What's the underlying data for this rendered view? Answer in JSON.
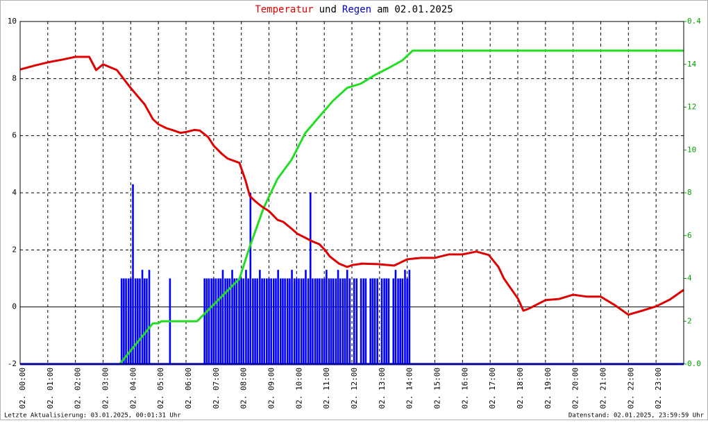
{
  "chart_data": {
    "type": "line",
    "title": [
      {
        "text": "Temperatur",
        "color": "#e00000"
      },
      {
        "text": "und",
        "color": "#000000"
      },
      {
        "text": "Regen",
        "color": "#0000c0"
      },
      {
        "text": "am 02.01.2025",
        "color": "#000000"
      }
    ],
    "footer_left": "Letzte Aktualisierung: 03.01.2025, 00:01:31 Uhr",
    "footer_right": "Datenstand: 02.01.2025, 23:59:59 Uhr",
    "xlim": [
      0,
      24
    ],
    "xticks": [
      {
        "value": 0,
        "label": "02. 00:00"
      },
      {
        "value": 1,
        "label": "02. 01:00"
      },
      {
        "value": 2,
        "label": "02. 02:00"
      },
      {
        "value": 3,
        "label": "02. 03:00"
      },
      {
        "value": 4,
        "label": "02. 04:00"
      },
      {
        "value": 5,
        "label": "02. 05:00"
      },
      {
        "value": 6,
        "label": "02. 06:00"
      },
      {
        "value": 7,
        "label": "02. 07:00"
      },
      {
        "value": 8,
        "label": "02. 08:00"
      },
      {
        "value": 9,
        "label": "02. 09:00"
      },
      {
        "value": 10,
        "label": "02. 10:00"
      },
      {
        "value": 11,
        "label": "02. 11:00"
      },
      {
        "value": 12,
        "label": "02. 12:00"
      },
      {
        "value": 13,
        "label": "02. 13:00"
      },
      {
        "value": 14,
        "label": "02. 14:00"
      },
      {
        "value": 15,
        "label": "02. 15:00"
      },
      {
        "value": 16,
        "label": "02. 16:00"
      },
      {
        "value": 17,
        "label": "02. 17:00"
      },
      {
        "value": 18,
        "label": "02. 18:00"
      },
      {
        "value": 19,
        "label": "02. 19:00"
      },
      {
        "value": 20,
        "label": "02. 20:00"
      },
      {
        "value": 21,
        "label": "02. 21:00"
      },
      {
        "value": 22,
        "label": "02. 22:00"
      },
      {
        "value": 23,
        "label": "02. 23:00"
      }
    ],
    "ylim": [
      -2,
      10
    ],
    "yticks": [
      -2,
      0,
      2,
      4,
      6,
      8,
      10
    ],
    "y2lim": [
      0,
      16
    ],
    "y2ticks": [
      2,
      4,
      6,
      8,
      10,
      12,
      14
    ],
    "y3lim": [
      0,
      0.4
    ],
    "y3ticks": [
      {
        "value": 0,
        "label": "0.0"
      },
      0.4
    ],
    "y2_tick_color": "#00a000",
    "grid": true,
    "series": [
      {
        "color": "#0000ff",
        "kind": "bar",
        "axis": "y3",
        "x": [
          3.67,
          3.75,
          3.83,
          3.92,
          4.0,
          4.08,
          4.17,
          4.25,
          4.33,
          4.42,
          4.5,
          4.58,
          4.67,
          5.42,
          6.67,
          6.75,
          6.83,
          6.92,
          7.0,
          7.08,
          7.17,
          7.25,
          7.33,
          7.42,
          7.5,
          7.58,
          7.67,
          7.75,
          7.83,
          7.92,
          8.0,
          8.08,
          8.17,
          8.25,
          8.33,
          8.42,
          8.5,
          8.58,
          8.67,
          8.75,
          8.83,
          8.92,
          9.0,
          9.08,
          9.17,
          9.25,
          9.33,
          9.42,
          9.5,
          9.58,
          9.67,
          9.75,
          9.83,
          9.92,
          10.0,
          10.08,
          10.17,
          10.25,
          10.33,
          10.42,
          10.5,
          10.58,
          10.67,
          10.75,
          10.83,
          10.92,
          11.0,
          11.08,
          11.17,
          11.25,
          11.33,
          11.42,
          11.5,
          11.58,
          11.67,
          11.75,
          11.83,
          11.92,
          12.0,
          12.08,
          12.17,
          12.25,
          12.33,
          12.42,
          12.5,
          12.58,
          12.67,
          12.75,
          12.83,
          12.92,
          13.0,
          13.08,
          13.17,
          13.25,
          13.33,
          13.42,
          13.5,
          13.58,
          13.67,
          13.75,
          13.83,
          13.92,
          14.0,
          14.08
        ],
        "values": [
          0.1,
          0.1,
          0.1,
          0.1,
          0.1,
          0.21,
          0.1,
          0.1,
          0.1,
          0.11,
          0.1,
          0.1,
          0.11,
          0.1,
          0.1,
          0.1,
          0.1,
          0.1,
          0.1,
          0.1,
          0.1,
          0.1,
          0.11,
          0.1,
          0.1,
          0.1,
          0.11,
          0.1,
          0.1,
          0.1,
          0.1,
          0.1,
          0.11,
          0.1,
          0.2,
          0.1,
          0.1,
          0.1,
          0.11,
          0.1,
          0.1,
          0.1,
          0.1,
          0.1,
          0.1,
          0.1,
          0.11,
          0.1,
          0.1,
          0.1,
          0.1,
          0.1,
          0.11,
          0.1,
          0.1,
          0.1,
          0.1,
          0.1,
          0.11,
          0.1,
          0.2,
          0.1,
          0.1,
          0.1,
          0.1,
          0.1,
          0.1,
          0.11,
          0.1,
          0.1,
          0.1,
          0.1,
          0.11,
          0.1,
          0.1,
          0.1,
          0.11,
          0.1,
          0,
          0.1,
          0.1,
          0,
          0.1,
          0.1,
          0.1,
          0,
          0.1,
          0.1,
          0.1,
          0.1,
          0,
          0.1,
          0.1,
          0.1,
          0.1,
          0,
          0.1,
          0.11,
          0.1,
          0.1,
          0.1,
          0.11,
          0.1,
          0.11
        ]
      },
      {
        "color": "#22dd22",
        "kind": "line",
        "axis": "y2",
        "x": [
          0,
          3.6,
          4.8,
          5.0,
          5.1,
          6.4,
          7.93,
          8.31,
          8.81,
          9.31,
          9.82,
          10.32,
          10.82,
          11.32,
          11.83,
          12.33,
          12.83,
          13.33,
          13.83,
          14.2,
          24
        ],
        "values": [
          0,
          0,
          1.9,
          1.9,
          2.0,
          2.0,
          3.98,
          5.5,
          7.3,
          8.65,
          9.55,
          10.8,
          11.56,
          12.3,
          12.9,
          13.1,
          13.5,
          13.83,
          14.19,
          14.64,
          14.64
        ]
      },
      {
        "color": "#e00000",
        "kind": "line",
        "x": [
          0,
          0.5,
          1,
          1.5,
          2,
          2.5,
          2.75,
          3,
          3.5,
          4,
          4.5,
          4.8,
          5,
          5.3,
          5.5,
          5.8,
          6,
          6.3,
          6.5,
          6.8,
          7,
          7.3,
          7.5,
          7.93,
          8.15,
          8.31,
          8.51,
          8.71,
          9.01,
          9.31,
          9.52,
          9.82,
          10.02,
          10.32,
          10.52,
          10.82,
          11.02,
          11.2,
          11.53,
          11.83,
          12.02,
          12.4,
          12.33,
          12.93,
          13.53,
          14.0,
          14.5,
          15.0,
          15.5,
          16.0,
          16.5,
          16.95,
          17.3,
          17.5,
          18.0,
          18.2,
          18.4,
          19.0,
          19.5,
          20.0,
          20.5,
          21.0,
          21.5,
          22.0,
          22.5,
          23.0,
          23.5,
          24
        ],
        "values": [
          8.32,
          8.45,
          8.57,
          8.66,
          8.76,
          8.76,
          8.3,
          8.5,
          8.3,
          7.67,
          7.1,
          6.58,
          6.4,
          6.26,
          6.2,
          6.1,
          6.13,
          6.2,
          6.18,
          5.95,
          5.65,
          5.36,
          5.2,
          5.05,
          4.44,
          3.88,
          3.7,
          3.54,
          3.35,
          3.05,
          2.98,
          2.74,
          2.57,
          2.42,
          2.32,
          2.2,
          2.0,
          1.77,
          1.52,
          1.4,
          1.47,
          1.52,
          1.52,
          1.5,
          1.45,
          1.67,
          1.72,
          1.72,
          1.84,
          1.84,
          1.94,
          1.82,
          1.4,
          0.99,
          0.3,
          -0.13,
          -0.06,
          0.24,
          0.28,
          0.43,
          0.36,
          0.36,
          0.07,
          -0.27,
          -0.13,
          0.02,
          0.26,
          0.6
        ]
      }
    ]
  }
}
